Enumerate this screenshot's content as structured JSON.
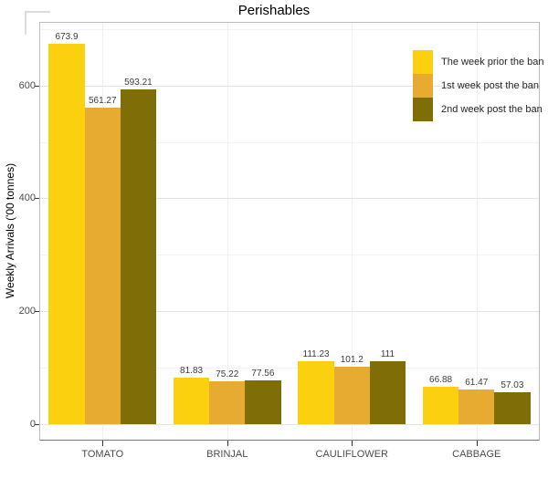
{
  "chart_data": {
    "type": "bar",
    "title": "Perishables",
    "xlabel": "",
    "ylabel": "Weekly Arrivals ('00 tonnes)",
    "categories": [
      "TOMATO",
      "BRINJAL",
      "CAULIFLOWER",
      "CABBAGE"
    ],
    "series": [
      {
        "name": "The week prior the ban",
        "color": "#FBD00F",
        "values": [
          673.9,
          81.83,
          111.23,
          66.88
        ],
        "labels": [
          "673.9",
          "81.83",
          "111.23",
          "66.88"
        ]
      },
      {
        "name": "1st week post the ban",
        "color": "#E7AB32",
        "values": [
          561.27,
          75.22,
          101.2,
          61.47
        ],
        "labels": [
          "561.27",
          "75.22",
          "101.2",
          "61.47"
        ]
      },
      {
        "name": "2nd week post the ban",
        "color": "#7F6E08",
        "values": [
          593.21,
          77.56,
          111,
          57.03
        ],
        "labels": [
          "593.21",
          "77.56",
          "111",
          "57.03"
        ]
      }
    ],
    "y_ticks": [
      0,
      200,
      400,
      600
    ],
    "ylim": [
      0,
      712
    ],
    "grid": true,
    "legend_position": "inside-top-right"
  }
}
